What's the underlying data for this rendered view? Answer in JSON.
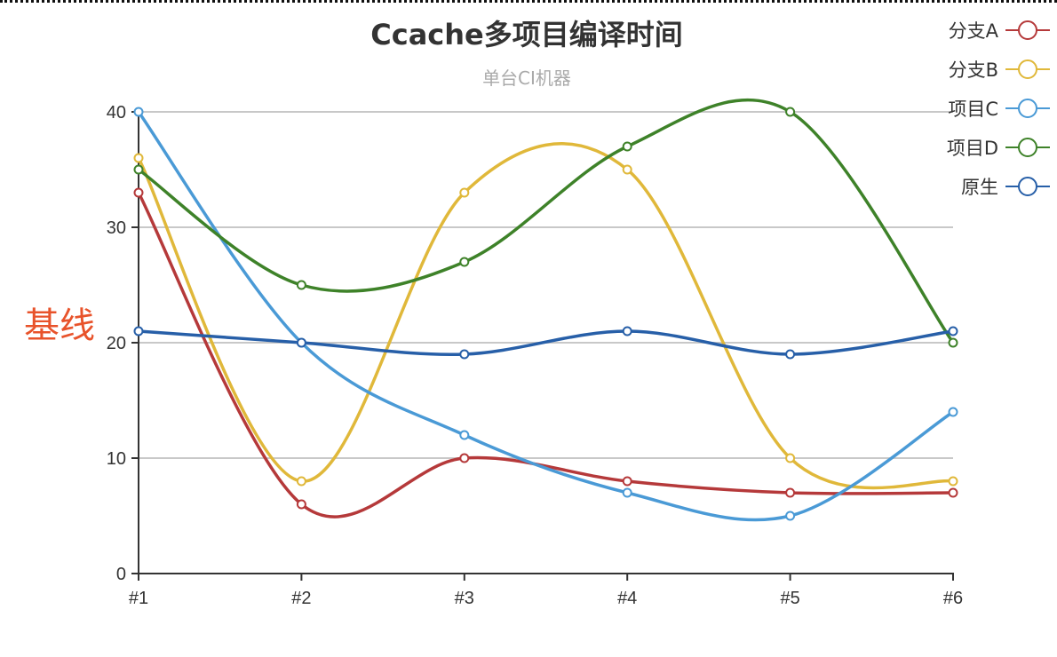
{
  "chart": {
    "title": "Ccache多项目编译时间",
    "subtitle": "单台CI机器",
    "annotation": "基线"
  },
  "legend": [
    {
      "label": "分支A",
      "color": "#b5393a"
    },
    {
      "label": "分支B",
      "color": "#e0b83a"
    },
    {
      "label": "项目C",
      "color": "#4a9ad6"
    },
    {
      "label": "项目D",
      "color": "#3e8229"
    },
    {
      "label": "原生",
      "color": "#275fa8"
    }
  ],
  "chart_data": {
    "type": "line",
    "title": "Ccache多项目编译时间",
    "subtitle": "单台CI机器",
    "xlabel": "",
    "ylabel": "",
    "categories": [
      "#1",
      "#2",
      "#3",
      "#4",
      "#5",
      "#6"
    ],
    "ylim": [
      0,
      40
    ],
    "yticks": [
      0,
      10,
      20,
      30,
      40
    ],
    "grid": true,
    "smooth": true,
    "legend_position": "top-right",
    "annotations": [
      {
        "text": "基线",
        "near_y": 20,
        "color": "#e8532b"
      }
    ],
    "series": [
      {
        "name": "分支A",
        "color": "#b5393a",
        "values": [
          33,
          6,
          10,
          8,
          7,
          7
        ]
      },
      {
        "name": "分支B",
        "color": "#e0b83a",
        "values": [
          36,
          8,
          33,
          35,
          10,
          8
        ]
      },
      {
        "name": "项目C",
        "color": "#4a9ad6",
        "values": [
          40,
          20,
          12,
          7,
          5,
          14
        ]
      },
      {
        "name": "项目D",
        "color": "#3e8229",
        "values": [
          35,
          25,
          27,
          37,
          40,
          20
        ]
      },
      {
        "name": "原生",
        "color": "#275fa8",
        "values": [
          21,
          20,
          19,
          21,
          19,
          21
        ]
      }
    ]
  }
}
